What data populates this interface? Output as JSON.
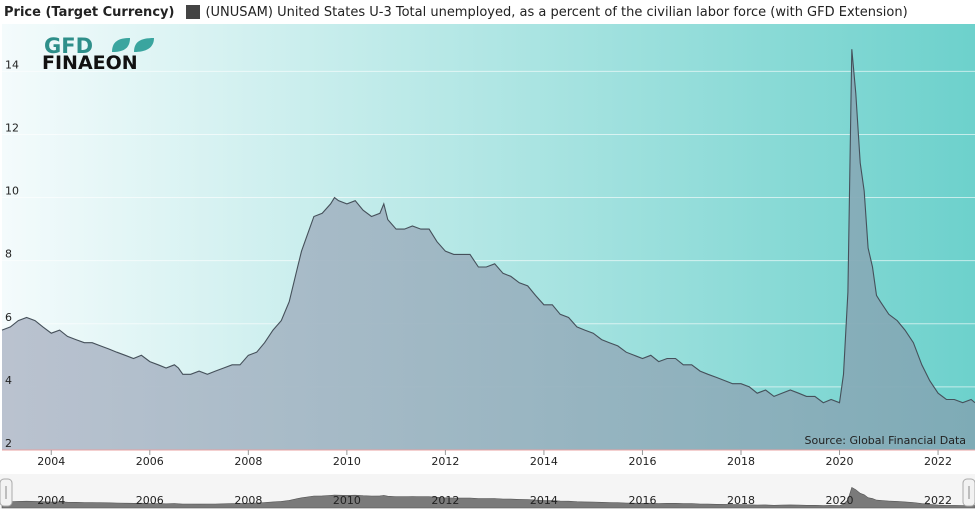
{
  "header": {
    "title": "Price (Target Currency)",
    "legend_label": "(UNUSAM) United States U-3 Total unemployed, as a percent of the civilian labor force (with GFD Extension)"
  },
  "logo": {
    "line1": "GFD",
    "line2": "FINAEON"
  },
  "source_note": "Source: Global Financial Data",
  "navigator": {
    "year_labels": [
      "2004",
      "2006",
      "2008",
      "2010",
      "2012",
      "2014",
      "2016",
      "2018",
      "2020",
      "2022"
    ]
  },
  "colors": {
    "bg_left": "#f4fbfc",
    "bg_right": "#6dd1cc",
    "fill_left": "#b7bfcd",
    "fill_right": "#7fa9b5",
    "line": "#45505a",
    "nav_fill": "#7a7a7a"
  },
  "chart_data": {
    "type": "area",
    "title": "",
    "xlabel": "",
    "ylabel": "",
    "ylim": [
      2,
      15.5
    ],
    "xlim": [
      2003.0,
      2022.75
    ],
    "y_ticks": [
      2,
      4,
      6,
      8,
      10,
      12,
      14
    ],
    "x_ticks": [
      2004,
      2006,
      2008,
      2010,
      2012,
      2014,
      2016,
      2018,
      2020,
      2022
    ],
    "grid": "horizontal",
    "series": [
      {
        "name": "(UNUSAM) United States U-3 Total unemployed, as a percent of the civilian labor force (with GFD Extension)",
        "points": [
          [
            2003.0,
            5.8
          ],
          [
            2003.17,
            5.9
          ],
          [
            2003.33,
            6.1
          ],
          [
            2003.5,
            6.2
          ],
          [
            2003.67,
            6.1
          ],
          [
            2003.83,
            5.9
          ],
          [
            2004.0,
            5.7
          ],
          [
            2004.17,
            5.8
          ],
          [
            2004.33,
            5.6
          ],
          [
            2004.5,
            5.5
          ],
          [
            2004.67,
            5.4
          ],
          [
            2004.83,
            5.4
          ],
          [
            2005.0,
            5.3
          ],
          [
            2005.17,
            5.2
          ],
          [
            2005.33,
            5.1
          ],
          [
            2005.5,
            5.0
          ],
          [
            2005.67,
            4.9
          ],
          [
            2005.83,
            5.0
          ],
          [
            2006.0,
            4.8
          ],
          [
            2006.17,
            4.7
          ],
          [
            2006.33,
            4.6
          ],
          [
            2006.5,
            4.7
          ],
          [
            2006.58,
            4.6
          ],
          [
            2006.67,
            4.4
          ],
          [
            2006.83,
            4.4
          ],
          [
            2007.0,
            4.5
          ],
          [
            2007.17,
            4.4
          ],
          [
            2007.33,
            4.5
          ],
          [
            2007.5,
            4.6
          ],
          [
            2007.67,
            4.7
          ],
          [
            2007.83,
            4.7
          ],
          [
            2008.0,
            5.0
          ],
          [
            2008.17,
            5.1
          ],
          [
            2008.33,
            5.4
          ],
          [
            2008.5,
            5.8
          ],
          [
            2008.67,
            6.1
          ],
          [
            2008.83,
            6.7
          ],
          [
            2009.0,
            7.8
          ],
          [
            2009.08,
            8.3
          ],
          [
            2009.17,
            8.7
          ],
          [
            2009.33,
            9.4
          ],
          [
            2009.5,
            9.5
          ],
          [
            2009.67,
            9.8
          ],
          [
            2009.75,
            10.0
          ],
          [
            2009.83,
            9.9
          ],
          [
            2010.0,
            9.8
          ],
          [
            2010.17,
            9.9
          ],
          [
            2010.33,
            9.6
          ],
          [
            2010.5,
            9.4
          ],
          [
            2010.67,
            9.5
          ],
          [
            2010.75,
            9.8
          ],
          [
            2010.83,
            9.3
          ],
          [
            2011.0,
            9.0
          ],
          [
            2011.17,
            9.0
          ],
          [
            2011.33,
            9.1
          ],
          [
            2011.5,
            9.0
          ],
          [
            2011.67,
            9.0
          ],
          [
            2011.83,
            8.6
          ],
          [
            2012.0,
            8.3
          ],
          [
            2012.17,
            8.2
          ],
          [
            2012.33,
            8.2
          ],
          [
            2012.5,
            8.2
          ],
          [
            2012.67,
            7.8
          ],
          [
            2012.83,
            7.8
          ],
          [
            2013.0,
            7.9
          ],
          [
            2013.17,
            7.6
          ],
          [
            2013.33,
            7.5
          ],
          [
            2013.5,
            7.3
          ],
          [
            2013.67,
            7.2
          ],
          [
            2013.83,
            6.9
          ],
          [
            2014.0,
            6.6
          ],
          [
            2014.17,
            6.6
          ],
          [
            2014.33,
            6.3
          ],
          [
            2014.5,
            6.2
          ],
          [
            2014.67,
            5.9
          ],
          [
            2014.83,
            5.8
          ],
          [
            2015.0,
            5.7
          ],
          [
            2015.17,
            5.5
          ],
          [
            2015.33,
            5.4
          ],
          [
            2015.5,
            5.3
          ],
          [
            2015.67,
            5.1
          ],
          [
            2015.83,
            5.0
          ],
          [
            2016.0,
            4.9
          ],
          [
            2016.17,
            5.0
          ],
          [
            2016.33,
            4.8
          ],
          [
            2016.5,
            4.9
          ],
          [
            2016.67,
            4.9
          ],
          [
            2016.83,
            4.7
          ],
          [
            2017.0,
            4.7
          ],
          [
            2017.17,
            4.5
          ],
          [
            2017.33,
            4.4
          ],
          [
            2017.5,
            4.3
          ],
          [
            2017.67,
            4.2
          ],
          [
            2017.83,
            4.1
          ],
          [
            2018.0,
            4.1
          ],
          [
            2018.17,
            4.0
          ],
          [
            2018.33,
            3.8
          ],
          [
            2018.5,
            3.9
          ],
          [
            2018.67,
            3.7
          ],
          [
            2018.83,
            3.8
          ],
          [
            2019.0,
            3.9
          ],
          [
            2019.17,
            3.8
          ],
          [
            2019.33,
            3.7
          ],
          [
            2019.5,
            3.7
          ],
          [
            2019.67,
            3.5
          ],
          [
            2019.83,
            3.6
          ],
          [
            2020.0,
            3.5
          ],
          [
            2020.08,
            4.4
          ],
          [
            2020.17,
            7.0
          ],
          [
            2020.25,
            14.7
          ],
          [
            2020.33,
            13.3
          ],
          [
            2020.42,
            11.1
          ],
          [
            2020.5,
            10.2
          ],
          [
            2020.58,
            8.4
          ],
          [
            2020.67,
            7.8
          ],
          [
            2020.75,
            6.9
          ],
          [
            2020.83,
            6.7
          ],
          [
            2021.0,
            6.3
          ],
          [
            2021.17,
            6.1
          ],
          [
            2021.33,
            5.8
          ],
          [
            2021.5,
            5.4
          ],
          [
            2021.67,
            4.7
          ],
          [
            2021.83,
            4.2
          ],
          [
            2022.0,
            3.8
          ],
          [
            2022.17,
            3.6
          ],
          [
            2022.33,
            3.6
          ],
          [
            2022.5,
            3.5
          ],
          [
            2022.67,
            3.6
          ],
          [
            2022.75,
            3.5
          ]
        ]
      }
    ]
  }
}
